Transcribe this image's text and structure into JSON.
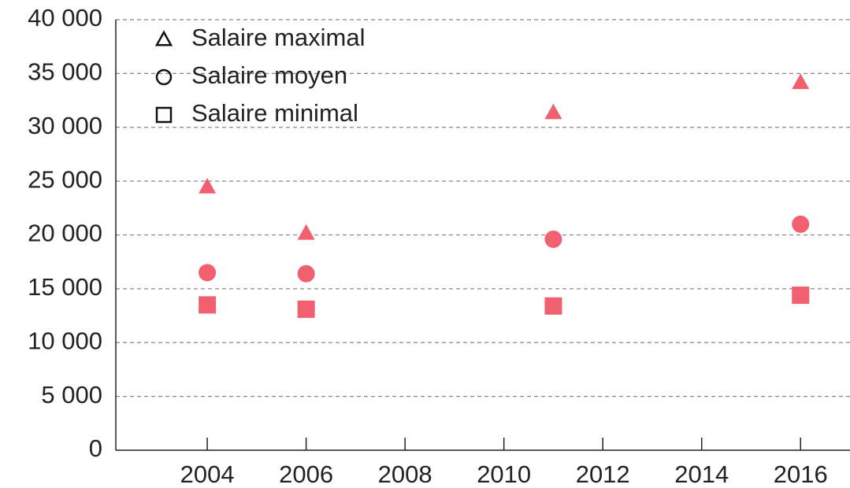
{
  "chart_data": {
    "type": "scatter",
    "x": [
      2004,
      2006,
      2011,
      2016
    ],
    "series": [
      {
        "name": "Salaire maximal",
        "color": "#f0606e",
        "marker": "triangle",
        "values": [
          24500,
          20200,
          31400,
          34200
        ]
      },
      {
        "name": "Salaire moyen",
        "color": "#f0606e",
        "marker": "circle",
        "values": [
          16500,
          16400,
          19600,
          21000
        ]
      },
      {
        "name": "Salaire minimal",
        "color": "#f0606e",
        "marker": "square",
        "values": [
          13500,
          13100,
          13400,
          14400
        ]
      }
    ],
    "xlim": [
      2002.15,
      2017.0
    ],
    "xticks": [
      2004,
      2006,
      2008,
      2010,
      2012,
      2014,
      2016
    ],
    "ylim": [
      0,
      40000
    ],
    "yticks": [
      0,
      {
        "value": 5000,
        "label": "5 000"
      },
      {
        "value": 10000,
        "label": "10 000"
      },
      {
        "value": 15000,
        "label": "15 000"
      },
      {
        "value": 20000,
        "label": "20 000"
      },
      {
        "value": 25000,
        "label": "25 000"
      },
      {
        "value": 30000,
        "label": "30 000"
      },
      {
        "value": 35000,
        "label": "35 000"
      },
      {
        "value": 40000,
        "label": "40 000"
      }
    ],
    "grid": true,
    "legend": "upper left"
  }
}
